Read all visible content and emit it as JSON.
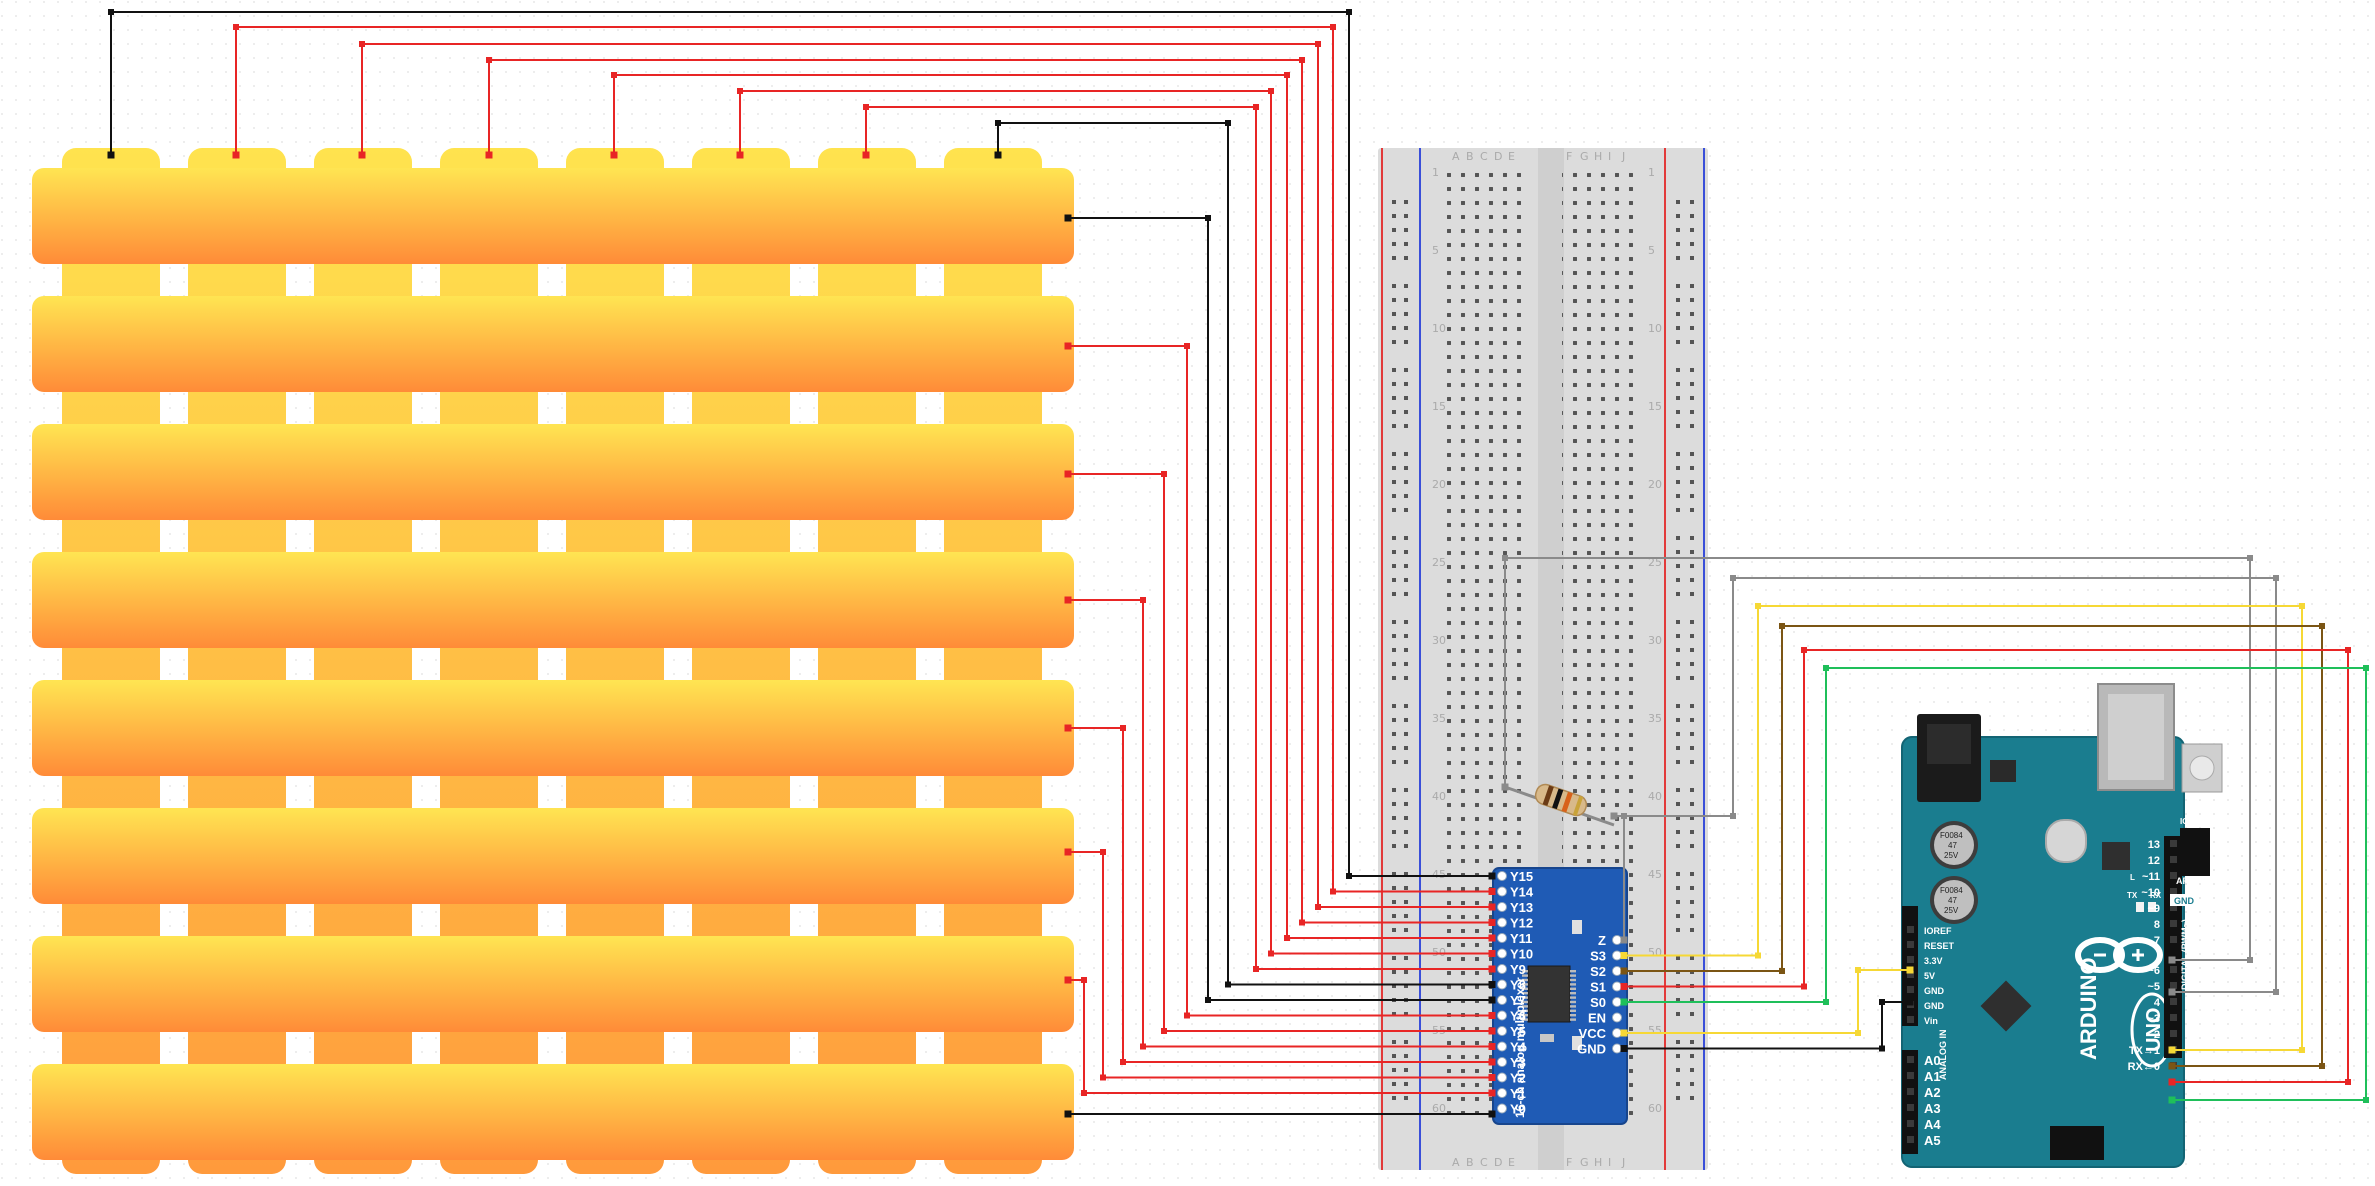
{
  "breadboard": {
    "column_letters_left": [
      "A",
      "B",
      "C",
      "D",
      "E"
    ],
    "column_letters_right": [
      "F",
      "G",
      "H",
      "I",
      "J"
    ],
    "row_numbers": [
      "1",
      "5",
      "10",
      "15",
      "20",
      "25",
      "30",
      "35",
      "40",
      "45",
      "50",
      "55",
      "60"
    ]
  },
  "mux": {
    "left_pins": [
      "Y15",
      "Y14",
      "Y13",
      "Y12",
      "Y11",
      "Y10",
      "Y9",
      "Y8",
      "Y7",
      "Y6",
      "Y5",
      "Y4",
      "Y3",
      "Y2",
      "Y1",
      "Y0"
    ],
    "right_pins": [
      "Z",
      "S3",
      "S2",
      "S1",
      "S0",
      "EN",
      "VCC",
      "GND"
    ],
    "caption": "16-ch analog multiplexer"
  },
  "arduino": {
    "logo_text": "ARDUINO",
    "model": "UNO",
    "reset_label": "RESET",
    "aref_label": "AREF",
    "gnd_label": "GND",
    "digital_label": "DIGITAL (PWM~)",
    "digital_pins": [
      "13",
      "12",
      "~11",
      "~10",
      "~9",
      "8",
      "7",
      "~6",
      "~5",
      "4",
      "~3",
      "2",
      "TX→1",
      "RX←0"
    ],
    "power_pins": [
      "IOREF",
      "RESET",
      "3.3V",
      "5V",
      "GND",
      "GND",
      "Vin"
    ],
    "analog_pins": [
      "A0",
      "A1",
      "A2",
      "A3",
      "A4",
      "A5"
    ],
    "analog_label": "ANALOG IN",
    "cap_label_1": "F0084",
    "cap_label_2": "47",
    "cap_label_3": "25V",
    "tx_label": "TX",
    "rx_label": "RX",
    "l_label": "L",
    "icsp_label": "ICSP"
  },
  "colors": {
    "grid_dot": "#e2e2e2",
    "strip_top": "#ffe552",
    "strip_bottom": "#ff8d3a",
    "wire_black": "#111111",
    "wire_red": "#e82525",
    "wire_gray": "#8a8a8a",
    "wire_yellow": "#f6d835",
    "wire_brown": "#7b5514",
    "wire_green": "#1fbf5a",
    "breadboard": "#dcdcdc",
    "mux_board": "#1f5bb5",
    "arduino_board": "#1a7d8f"
  }
}
